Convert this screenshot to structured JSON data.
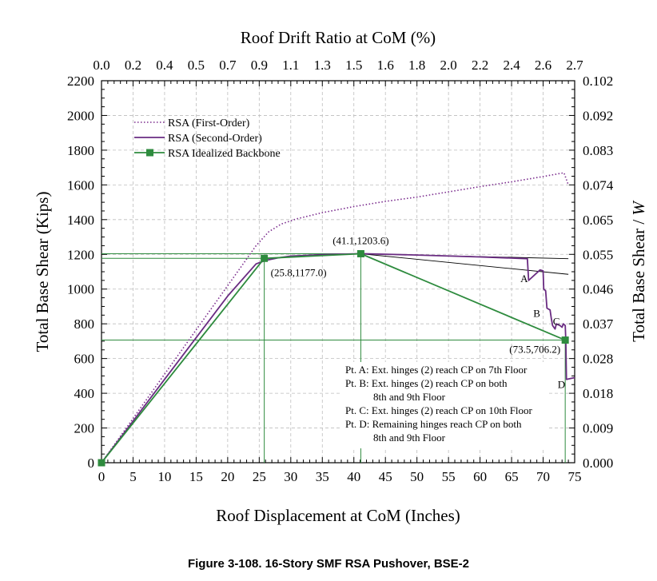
{
  "chart_data": {
    "type": "line",
    "title": "",
    "xlabel": "Roof Displacement at CoM (Inches)",
    "ylabel": "Total Base Shear (Kips)",
    "x2label": "Roof Drift Ratio at CoM (%)",
    "y2label": "Total Base Shear / W",
    "xlim": [
      0,
      75
    ],
    "ylim": [
      0,
      2200
    ],
    "grid": true,
    "legend_position": "top-left",
    "x_ticks": [
      "0",
      "5",
      "10",
      "15",
      "20",
      "25",
      "30",
      "35",
      "40",
      "45",
      "50",
      "55",
      "60",
      "65",
      "70",
      "75"
    ],
    "y_ticks": [
      "0",
      "200",
      "400",
      "600",
      "800",
      "1000",
      "1200",
      "1400",
      "1600",
      "1800",
      "2000",
      "2200"
    ],
    "x2_ticks": [
      "0.0",
      "0.2",
      "0.4",
      "0.5",
      "0.7",
      "0.9",
      "1.1",
      "1.3",
      "1.5",
      "1.6",
      "1.8",
      "2.0",
      "2.2",
      "2.4",
      "2.6",
      "2.7"
    ],
    "y2_ticks": [
      "0.000",
      "0.009",
      "0.018",
      "0.028",
      "0.037",
      "0.046",
      "0.055",
      "0.065",
      "0.074",
      "0.083",
      "0.092",
      "0.102"
    ],
    "series": [
      {
        "name": "RSA (First-Order)",
        "style": "dotted",
        "color": "#7b2d8e",
        "x": [
          0,
          5,
          10,
          15,
          20,
          24.5,
          26.5,
          28.5,
          31,
          35,
          40,
          45,
          50,
          55,
          60,
          65,
          70,
          73.3,
          74.0
        ],
        "y": [
          0,
          255,
          510,
          765,
          1020,
          1250,
          1330,
          1375,
          1405,
          1440,
          1475,
          1505,
          1530,
          1560,
          1590,
          1618,
          1648,
          1670,
          1600
        ]
      },
      {
        "name": "RSA (Second-Order)",
        "style": "solid",
        "color": "#6a2c82",
        "x": [
          0,
          5,
          10,
          15,
          20,
          24.5,
          26,
          28,
          30,
          35,
          41.1,
          50,
          60,
          67.5,
          67.7,
          69.5,
          70.0,
          70.1,
          70.4,
          70.6,
          71.1,
          71.3,
          71.5,
          71.9,
          72.1,
          72.7,
          73.0,
          73.2,
          73.5,
          73.6,
          73.7,
          75
        ],
        "y": [
          0,
          240,
          480,
          720,
          960,
          1145,
          1165,
          1180,
          1190,
          1198,
          1204,
          1196,
          1185,
          1175,
          1050,
          1110,
          1105,
          1000,
          990,
          890,
          880,
          830,
          790,
          770,
          800,
          790,
          780,
          800,
          790,
          706,
          480,
          490
        ]
      },
      {
        "name": "RSA Idealized Backbone",
        "style": "solid-square",
        "color": "#2e8b3e",
        "x": [
          0,
          25.8,
          41.1,
          73.5
        ],
        "y": [
          0,
          1177.0,
          1203.6,
          706.2
        ]
      }
    ],
    "annotations": [
      {
        "text": "(25.8,1177.0)",
        "x": 25.8,
        "y": 1177.0
      },
      {
        "text": "(41.1,1203.6)",
        "x": 41.1,
        "y": 1203.6
      },
      {
        "text": "(73.5,706.2)",
        "x": 73.5,
        "y": 706.2
      },
      {
        "text": "A",
        "x": 67.0,
        "y": 1040
      },
      {
        "text": "B",
        "x": 69.0,
        "y": 840
      },
      {
        "text": "C",
        "x": 72.1,
        "y": 795
      },
      {
        "text": "D",
        "x": 72.9,
        "y": 430
      }
    ],
    "notes": [
      "Pt. A: Ext. hinges (2) reach CP on 7th Floor",
      "Pt. B: Ext. hinges (2) reach CP on both",
      "8th and 9th Floor",
      "Pt. C: Ext. hinges (2) reach CP on 10th Floor",
      "Pt. D: Remaining hinges reach CP on both",
      "8th and 9th Floor"
    ],
    "reference_lines": [
      {
        "type": "horizontal",
        "y": 1177.0,
        "x_from": 0,
        "x_to": 25.8
      },
      {
        "type": "horizontal",
        "y": 1203.6,
        "x_from": 0,
        "x_to": 41.1
      },
      {
        "type": "horizontal",
        "y": 706.2,
        "x_from": 0,
        "x_to": 73.5
      },
      {
        "type": "vertical",
        "x": 25.8,
        "y_from": 0,
        "y_to": 1177.0
      },
      {
        "type": "vertical",
        "x": 41.1,
        "y_from": 0,
        "y_to": 1203.6
      },
      {
        "type": "vertical",
        "x": 73.5,
        "y_from": 0,
        "y_to": 706.2
      }
    ],
    "secant_lines": [
      {
        "x": [
          41.1,
          74.0
        ],
        "y": [
          1203.6,
          1175
        ]
      },
      {
        "x": [
          41.1,
          74.0
        ],
        "y": [
          1203.6,
          1085
        ]
      }
    ]
  },
  "caption": "Figure 3-108.  16-Story SMF RSA Pushover, BSE-2"
}
